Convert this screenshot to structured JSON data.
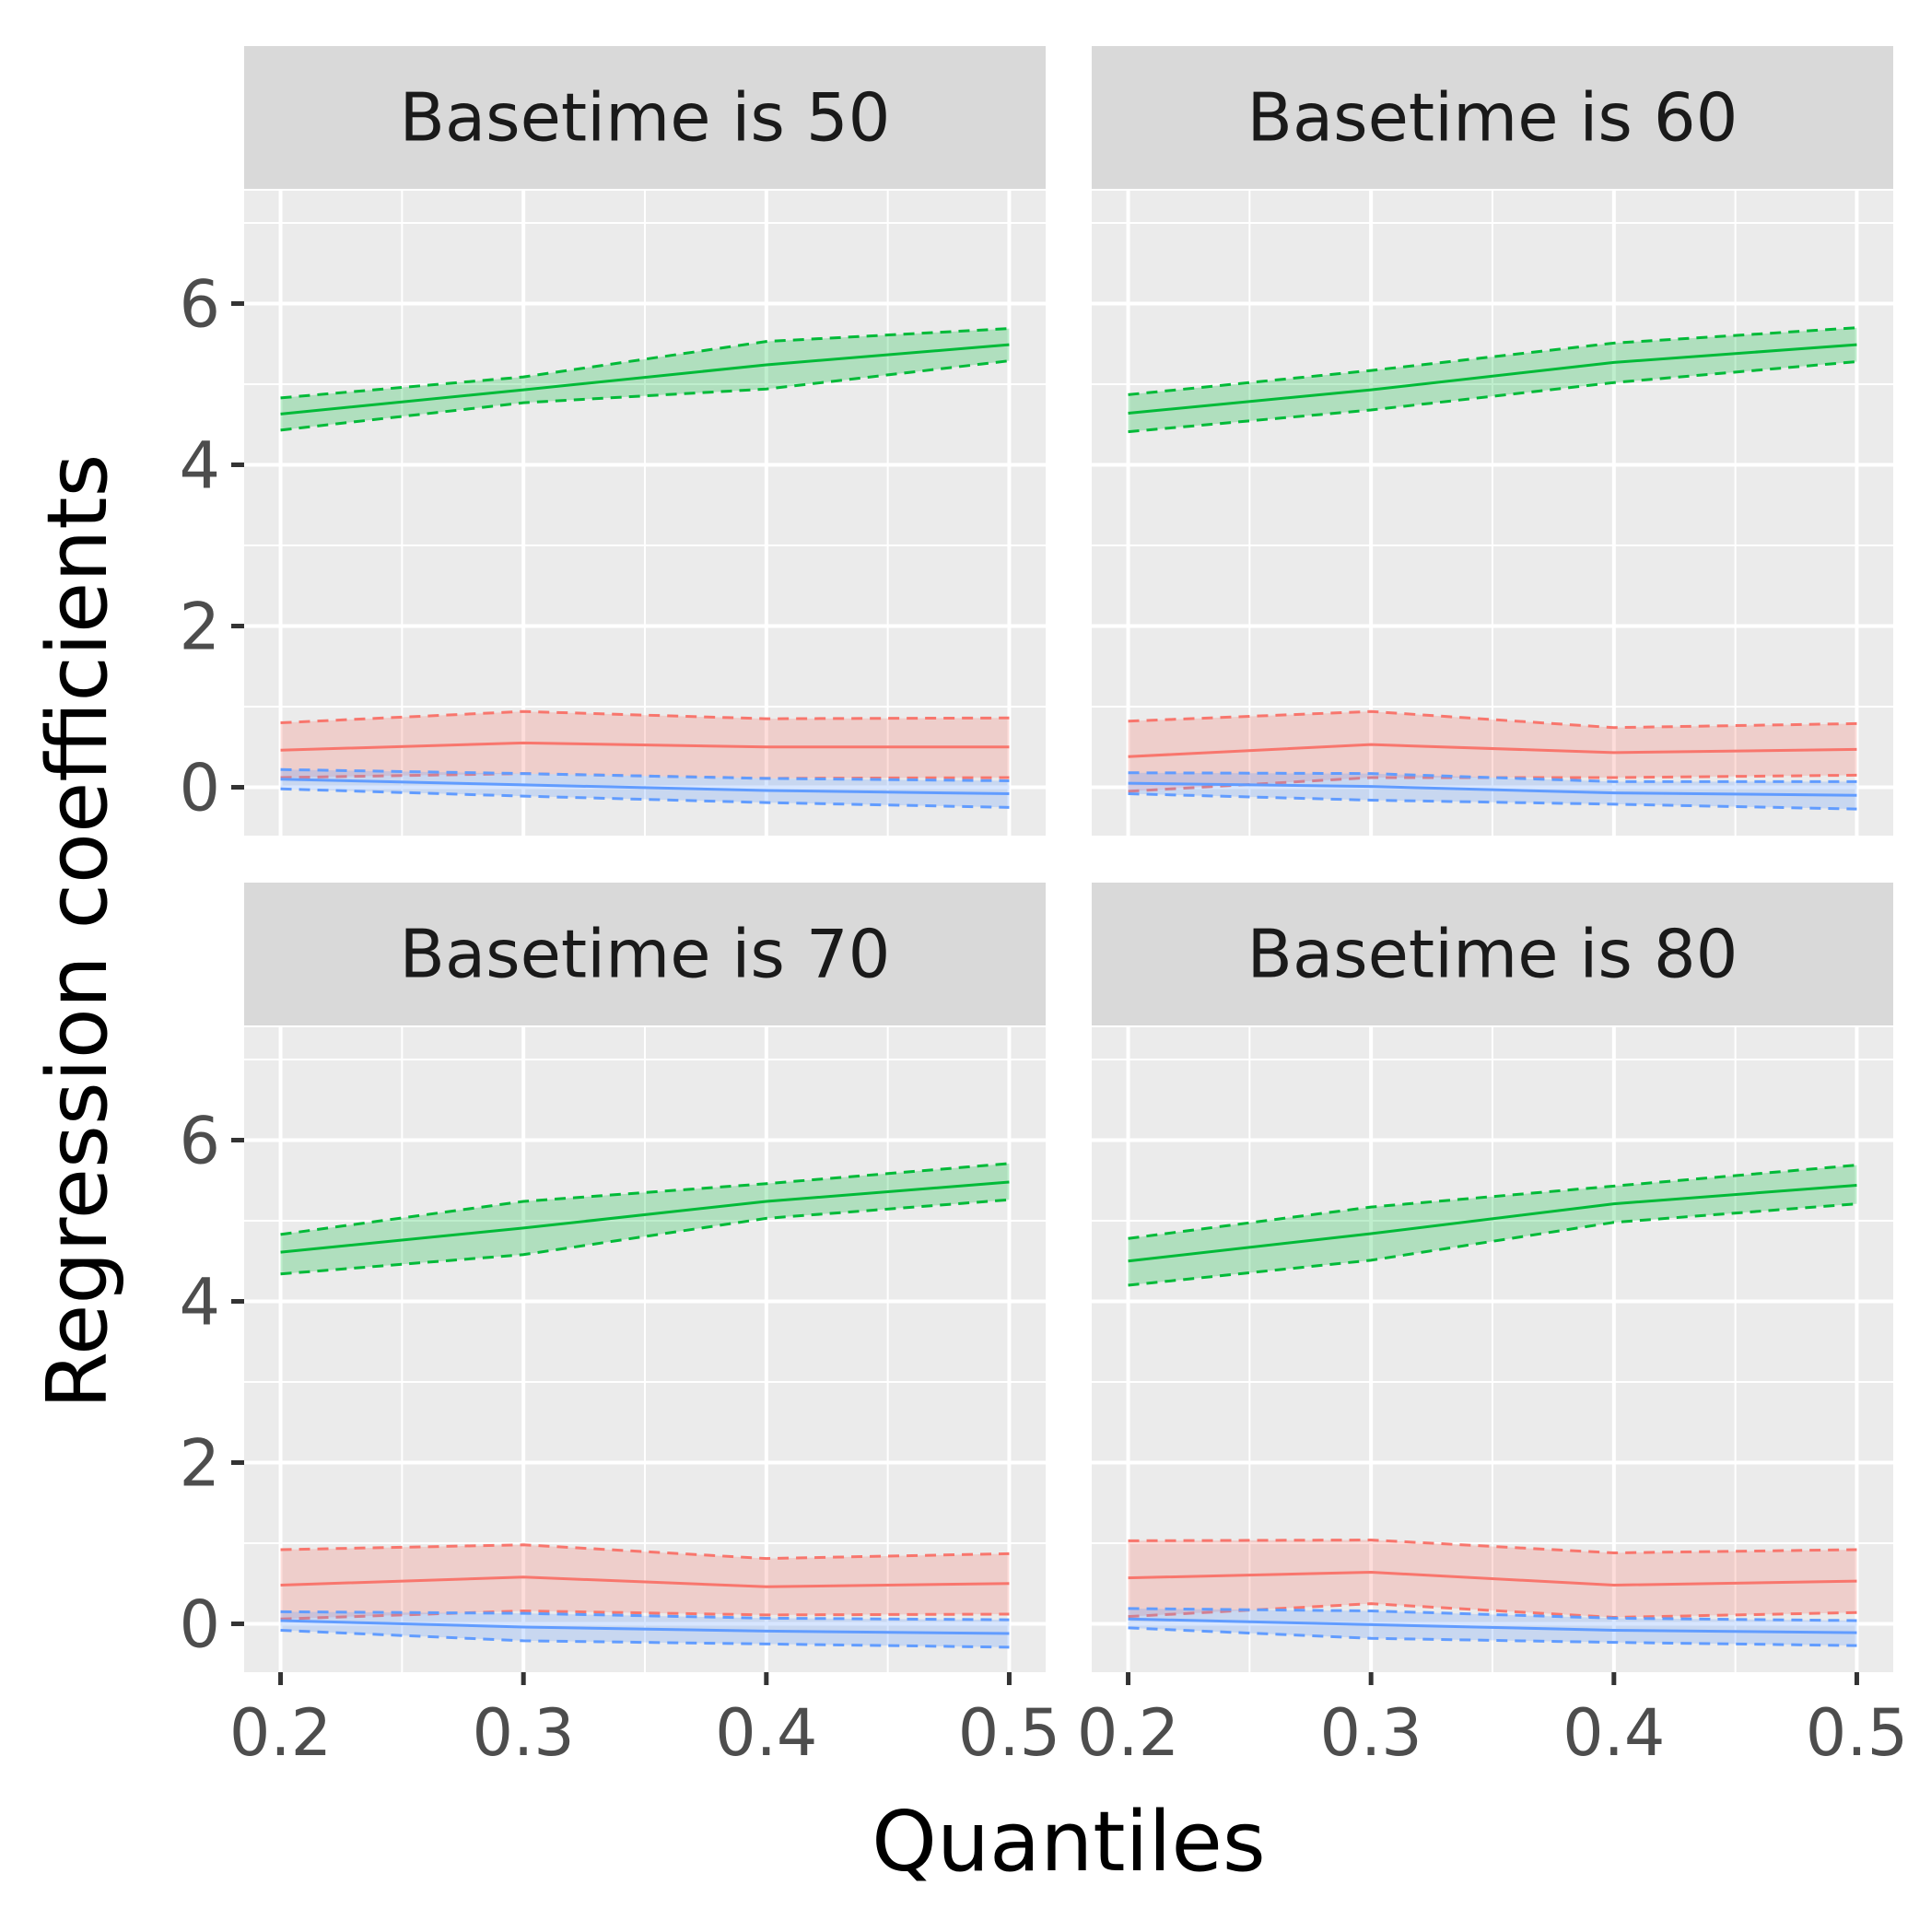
{
  "chart_data": {
    "type": "line",
    "xlabel": "Quantiles",
    "ylabel": "Regression coefficients",
    "x": [
      0.2,
      0.3,
      0.4,
      0.5
    ],
    "x_ticks": [
      "0.2",
      "0.3",
      "0.4",
      "0.5"
    ],
    "y_ticks": [
      "0",
      "2",
      "4",
      "6"
    ],
    "xlim": [
      0.185,
      0.515
    ],
    "ylim": [
      -0.6,
      7.4
    ],
    "grid": true,
    "colors": {
      "panel_bg": "#ebebeb",
      "strip_bg": "#d9d9d9",
      "grid": "#ffffff",
      "red": "#f8766d",
      "green": "#00ba38",
      "blue": "#619cff"
    },
    "panels": [
      {
        "strip": "Basetime is 50",
        "series": [
          {
            "name": "red",
            "color": "#f8766d",
            "estimate": [
              0.46,
              0.55,
              0.5,
              0.5
            ],
            "lower": [
              0.12,
              0.17,
              0.11,
              0.12
            ],
            "upper": [
              0.8,
              0.94,
              0.85,
              0.86
            ]
          },
          {
            "name": "green",
            "color": "#00ba38",
            "estimate": [
              4.63,
              4.93,
              5.24,
              5.49
            ],
            "lower": [
              4.43,
              4.77,
              4.94,
              5.29
            ],
            "upper": [
              4.83,
              5.09,
              5.53,
              5.69
            ]
          },
          {
            "name": "blue",
            "color": "#619cff",
            "estimate": [
              0.1,
              0.03,
              -0.04,
              -0.08
            ],
            "lower": [
              -0.02,
              -0.11,
              -0.19,
              -0.25
            ],
            "upper": [
              0.22,
              0.17,
              0.11,
              0.08
            ]
          }
        ]
      },
      {
        "strip": "Basetime is 60",
        "series": [
          {
            "name": "red",
            "color": "#f8766d",
            "estimate": [
              0.38,
              0.53,
              0.43,
              0.47
            ],
            "lower": [
              -0.05,
              0.12,
              0.12,
              0.15
            ],
            "upper": [
              0.82,
              0.94,
              0.74,
              0.79
            ]
          },
          {
            "name": "green",
            "color": "#00ba38",
            "estimate": [
              4.64,
              4.93,
              5.27,
              5.49
            ],
            "lower": [
              4.41,
              4.68,
              5.02,
              5.28
            ],
            "upper": [
              4.87,
              5.17,
              5.51,
              5.7
            ]
          },
          {
            "name": "blue",
            "color": "#619cff",
            "estimate": [
              0.05,
              0.01,
              -0.07,
              -0.1
            ],
            "lower": [
              -0.08,
              -0.16,
              -0.21,
              -0.27
            ],
            "upper": [
              0.18,
              0.17,
              0.07,
              0.07
            ]
          }
        ]
      },
      {
        "strip": "Basetime is 70",
        "series": [
          {
            "name": "red",
            "color": "#f8766d",
            "estimate": [
              0.48,
              0.58,
              0.46,
              0.5
            ],
            "lower": [
              0.06,
              0.16,
              0.11,
              0.12
            ],
            "upper": [
              0.92,
              0.98,
              0.81,
              0.87
            ]
          },
          {
            "name": "green",
            "color": "#00ba38",
            "estimate": [
              4.61,
              4.91,
              5.24,
              5.48
            ],
            "lower": [
              4.34,
              4.58,
              5.03,
              5.26
            ],
            "upper": [
              4.83,
              5.24,
              5.46,
              5.71
            ]
          },
          {
            "name": "blue",
            "color": "#619cff",
            "estimate": [
              0.04,
              -0.04,
              -0.09,
              -0.12
            ],
            "lower": [
              -0.08,
              -0.21,
              -0.25,
              -0.29
            ],
            "upper": [
              0.15,
              0.13,
              0.07,
              0.05
            ]
          }
        ]
      },
      {
        "strip": "Basetime is 80",
        "series": [
          {
            "name": "red",
            "color": "#f8766d",
            "estimate": [
              0.57,
              0.64,
              0.48,
              0.53
            ],
            "lower": [
              0.09,
              0.25,
              0.08,
              0.14
            ],
            "upper": [
              1.03,
              1.04,
              0.88,
              0.92
            ]
          },
          {
            "name": "green",
            "color": "#00ba38",
            "estimate": [
              4.5,
              4.84,
              5.21,
              5.44
            ],
            "lower": [
              4.2,
              4.51,
              4.98,
              5.21
            ],
            "upper": [
              4.78,
              5.17,
              5.43,
              5.69
            ]
          },
          {
            "name": "blue",
            "color": "#619cff",
            "estimate": [
              0.06,
              -0.01,
              -0.08,
              -0.11
            ],
            "lower": [
              -0.05,
              -0.18,
              -0.23,
              -0.27
            ],
            "upper": [
              0.19,
              0.16,
              0.07,
              0.04
            ]
          }
        ]
      }
    ]
  }
}
